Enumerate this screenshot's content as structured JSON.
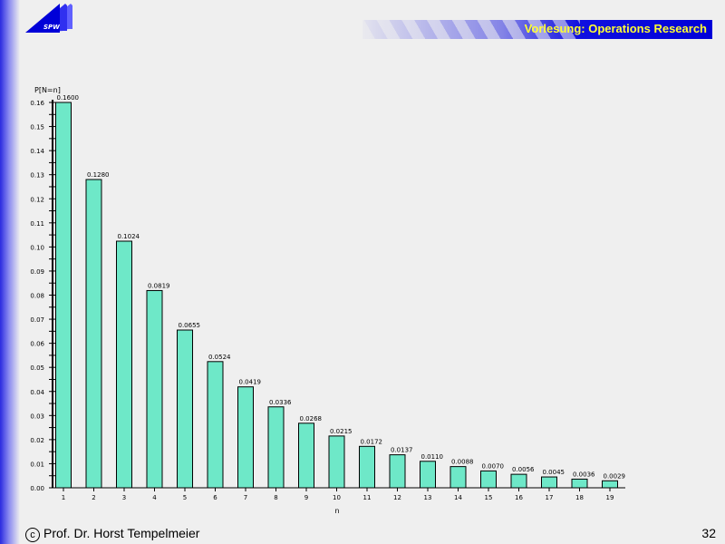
{
  "header": {
    "logo_text": "SPW",
    "title": "Vorlesung: Operations Research"
  },
  "footer": {
    "copyright_symbol": "c",
    "author": "Prof. Dr. Horst Tempelmeier",
    "page_number": "32"
  },
  "colors": {
    "bar": "#6ee8c8",
    "banner": "#0000d8",
    "banner_text": "#ffff33"
  },
  "chart_data": {
    "type": "bar",
    "title": "",
    "xlabel": "n",
    "ylabel": "P[N=n]",
    "ylim": [
      0,
      0.16
    ],
    "yticks": [
      "0.00",
      "0.01",
      "0.02",
      "0.03",
      "0.04",
      "0.05",
      "0.06",
      "0.07",
      "0.08",
      "0.09",
      "0.10",
      "0.11",
      "0.12",
      "0.13",
      "0.14",
      "0.15",
      "0.16"
    ],
    "categories": [
      "1",
      "2",
      "3",
      "4",
      "5",
      "6",
      "7",
      "8",
      "9",
      "10",
      "11",
      "12",
      "13",
      "14",
      "15",
      "16",
      "17",
      "18",
      "19"
    ],
    "values": [
      0.16,
      0.128,
      0.1024,
      0.0819,
      0.0655,
      0.0524,
      0.0419,
      0.0336,
      0.0268,
      0.0215,
      0.0172,
      0.0137,
      0.011,
      0.0088,
      0.007,
      0.0056,
      0.0045,
      0.0036,
      0.0029
    ],
    "labels": [
      "0.1600",
      "0.1280",
      "0.1024",
      "0.0819",
      "0.0655",
      "0.0524",
      "0.0419",
      "0.0336",
      "0.0268",
      "0.0215",
      "0.0172",
      "0.0137",
      "0.0110",
      "0.0088",
      "0.0070",
      "0.0056",
      "0.0045",
      "0.0036",
      "0.0029"
    ],
    "grid": false,
    "legend": "none"
  }
}
